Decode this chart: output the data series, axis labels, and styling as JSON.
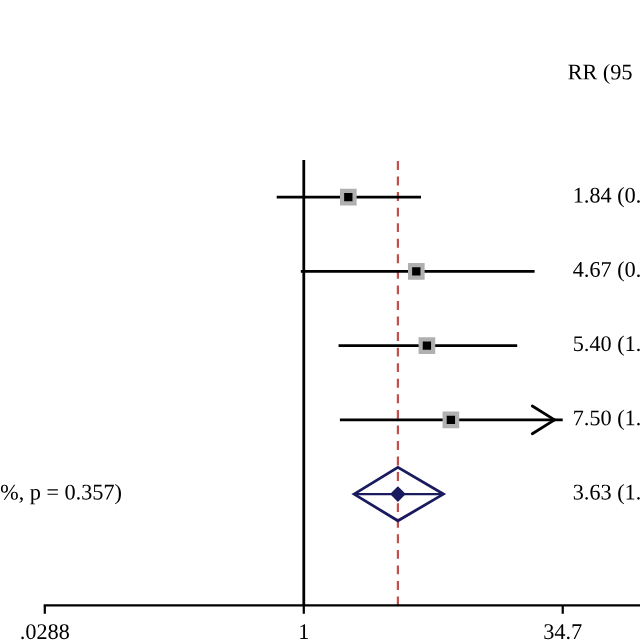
{
  "chart_data": {
    "type": "scatter",
    "orientation": "horizontal",
    "categories": [
      null,
      null,
      null,
      null,
      null,
      null
    ],
    "series": [
      {
        "color": "#000000",
        "marker": "square",
        "values": [
          1.84,
          4.67,
          5.4,
          7.5,
          null,
          null
        ],
        "errors": [
          [
            0.69,
            4.98
          ],
          [
            0.96,
            23.6
          ],
          [
            1.61,
            18.6
          ],
          [
            1.64,
            34.7
          ],
          null,
          null
        ]
      },
      {
        "color": "#1a1a5e",
        "marker": "diamond",
        "values": [
          null,
          null,
          null,
          null,
          3.63,
          null
        ],
        "errors": [
          null,
          null,
          null,
          null,
          [
            1.99,
            6.77
          ],
          null
        ]
      }
    ],
    "log": "x",
    "xlim": [
      0.0288,
      100
    ],
    "xticks": [
      {
        "value": 0.0288,
        "label": ".0288"
      },
      1,
      34.7
    ],
    "ref_lines": [
      {
        "axis": "x",
        "value": 1,
        "color": "#000000",
        "line_style": "solid"
      },
      {
        "axis": "x",
        "value": 3.63,
        "color": "#c0504d",
        "line_style": "dashed"
      }
    ],
    "grid": false,
    "legend": false,
    "annotations": [
      "RR (95",
      "1.84 (0.",
      "4.67 (0.",
      "5.40 (1.",
      "7.50 (1.",
      "3.63 (1.",
      "%, p = 0.357)"
    ]
  }
}
